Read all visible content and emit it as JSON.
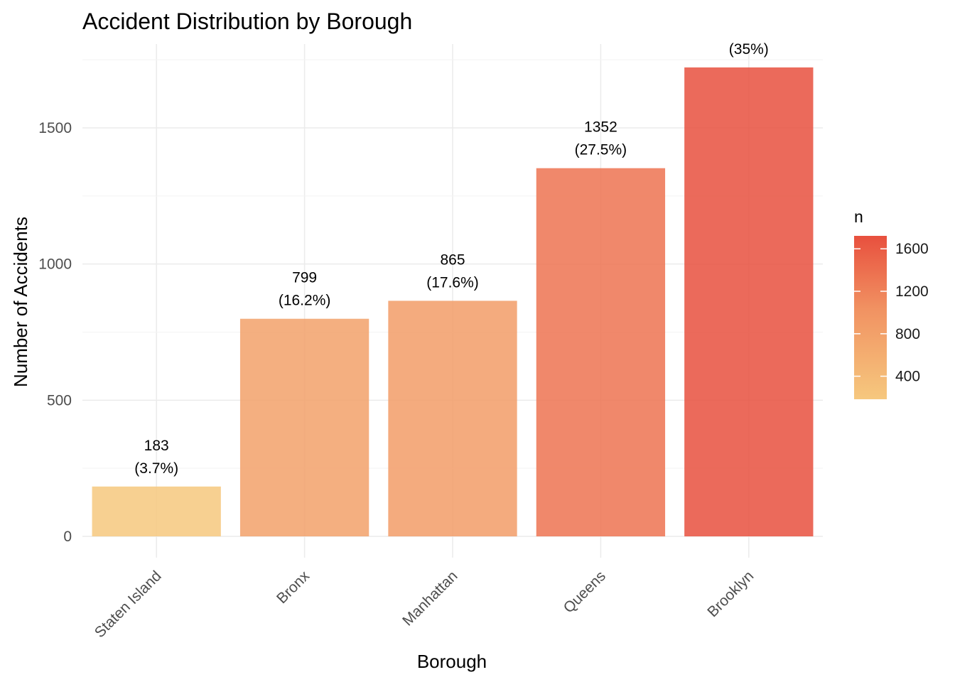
{
  "chart_data": {
    "type": "bar",
    "title": "Accident Distribution by Borough",
    "xlabel": "Borough",
    "ylabel": "Number of Accidents",
    "categories": [
      "Staten Island",
      "Bronx",
      "Manhattan",
      "Queens",
      "Brooklyn"
    ],
    "values": [
      183,
      799,
      865,
      1352,
      1722
    ],
    "data_labels": [
      [
        "183",
        "(3.7%)"
      ],
      [
        "799",
        "(16.2%)"
      ],
      [
        "865",
        "(17.6%)"
      ],
      [
        "1352",
        "(27.5%)"
      ],
      [
        "",
        "(35%)"
      ]
    ],
    "ylim": [
      0,
      1800
    ],
    "y_ticks": [
      0,
      500,
      1000,
      1500
    ],
    "y_tick_labels": [
      "0",
      "500",
      "1000",
      "1500"
    ],
    "grid": true,
    "legend": {
      "title": "n",
      "placement": "right",
      "type": "gradient",
      "range": [
        183,
        1722
      ],
      "ticks": [
        400,
        800,
        1200,
        1600
      ],
      "tick_labels": [
        "400",
        "800",
        "1200",
        "1600"
      ],
      "color_low": "#F6C87E",
      "color_high": "#E8503E"
    },
    "bar_opacity": 0.85
  }
}
